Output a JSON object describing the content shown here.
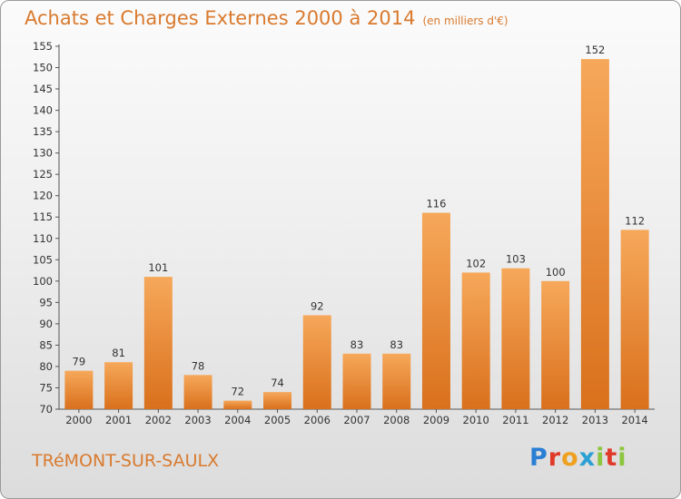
{
  "chart_data": {
    "type": "bar",
    "title": "Achats et Charges Externes 2000 à 2014",
    "subtitle": "(en milliers d'€)",
    "categories": [
      "2000",
      "2001",
      "2002",
      "2003",
      "2004",
      "2005",
      "2006",
      "2007",
      "2008",
      "2009",
      "2010",
      "2011",
      "2012",
      "2013",
      "2014"
    ],
    "values": [
      79,
      81,
      101,
      78,
      72,
      74,
      92,
      83,
      83,
      116,
      102,
      103,
      100,
      152,
      112
    ],
    "ylim": [
      70,
      155
    ],
    "yticks": [
      70,
      75,
      80,
      85,
      90,
      95,
      100,
      105,
      110,
      115,
      120,
      125,
      130,
      135,
      140,
      145,
      150,
      155
    ],
    "grid": false,
    "bar_color": "#f0953a"
  },
  "footer": {
    "commune": "TRéMONT-SUR-SAULX",
    "logo_letters": [
      "P",
      "r",
      "o",
      "x",
      "i",
      "t",
      "i"
    ],
    "logo_colors": [
      "#2a7fd4",
      "#e03a2a",
      "#f0a020",
      "#2aa0d4",
      "#8cc63f",
      "#e03a2a",
      "#8cc63f"
    ]
  }
}
